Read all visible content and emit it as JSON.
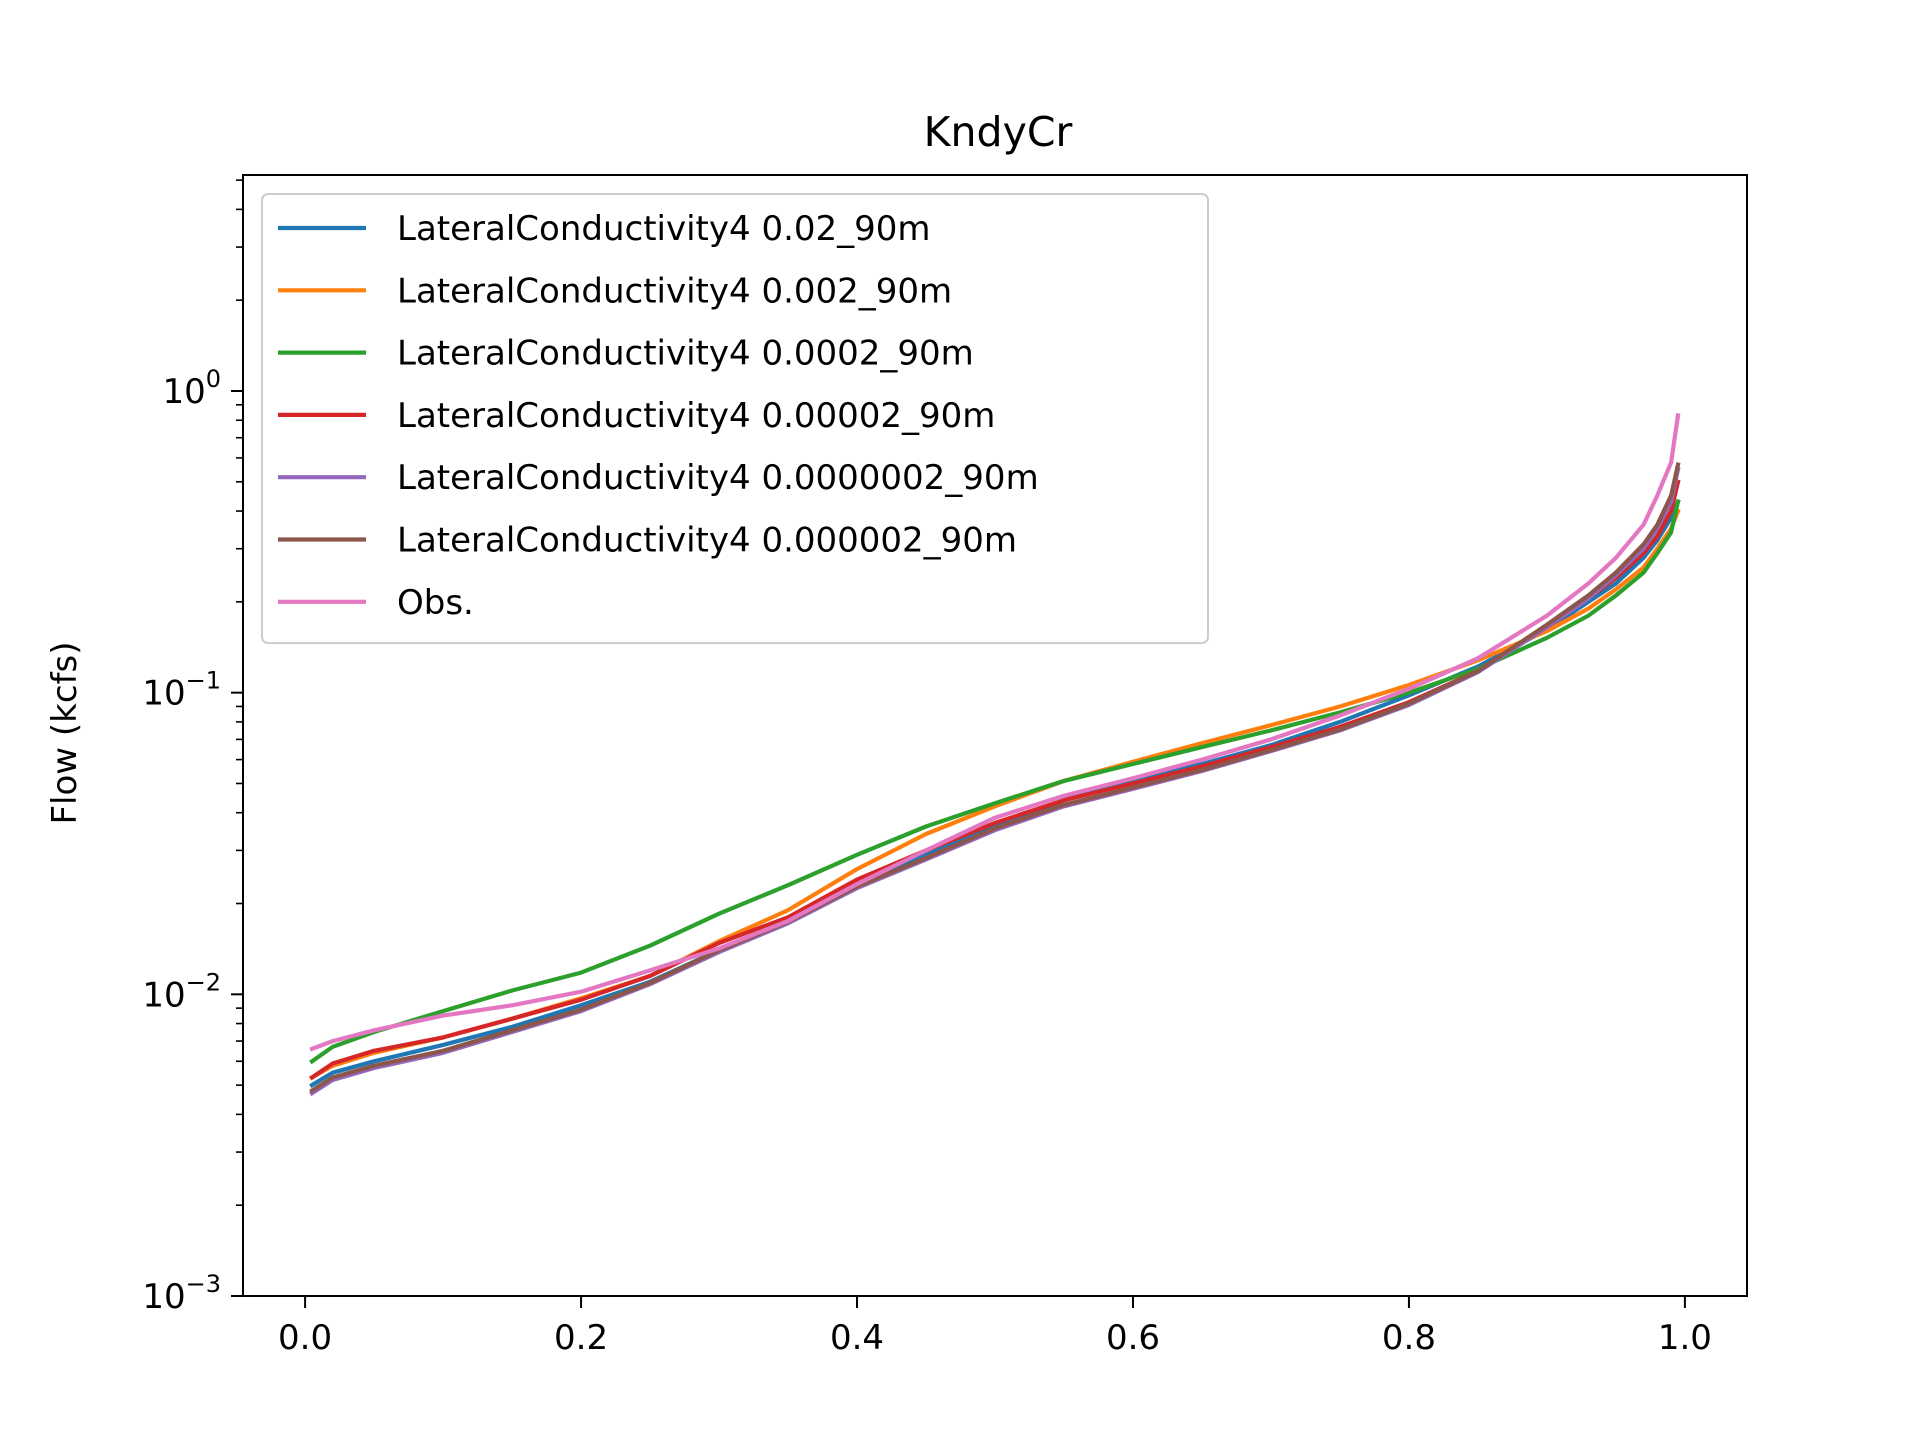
{
  "chart_data": {
    "type": "line",
    "title": "KndyCr",
    "xlabel": "",
    "ylabel": "Flow (kcfs)",
    "xlim": [
      -0.045,
      1.045
    ],
    "ylim": [
      0.001,
      5.2
    ],
    "yscale": "log",
    "grid": false,
    "legend_position": "upper-left",
    "xticks": [
      {
        "value": 0.0,
        "label": "0.0"
      },
      {
        "value": 0.2,
        "label": "0.2"
      },
      {
        "value": 0.4,
        "label": "0.4"
      },
      {
        "value": 0.6,
        "label": "0.6"
      },
      {
        "value": 0.8,
        "label": "0.8"
      },
      {
        "value": 1.0,
        "label": "1.0"
      }
    ],
    "yticks": [
      {
        "value": 0.001,
        "base": "10",
        "exp": "−3"
      },
      {
        "value": 0.01,
        "base": "10",
        "exp": "−2"
      },
      {
        "value": 0.1,
        "base": "10",
        "exp": "−1"
      },
      {
        "value": 1,
        "base": "10",
        "exp": "0"
      }
    ],
    "series": [
      {
        "name": "LateralConductivity4 0.02_90m",
        "color": "#1f77b4",
        "x": [
          0.005,
          0.02,
          0.05,
          0.1,
          0.15,
          0.2,
          0.25,
          0.3,
          0.35,
          0.4,
          0.45,
          0.5,
          0.55,
          0.6,
          0.65,
          0.7,
          0.75,
          0.8,
          0.85,
          0.9,
          0.93,
          0.95,
          0.97,
          0.98,
          0.99,
          0.995
        ],
        "y": [
          0.005,
          0.0055,
          0.006,
          0.0068,
          0.0078,
          0.0092,
          0.011,
          0.014,
          0.0175,
          0.023,
          0.029,
          0.036,
          0.044,
          0.051,
          0.058,
          0.067,
          0.08,
          0.098,
          0.122,
          0.162,
          0.2,
          0.23,
          0.28,
          0.32,
          0.38,
          0.43
        ]
      },
      {
        "name": "LateralConductivity4 0.002_90m",
        "color": "#ff7f0e",
        "x": [
          0.005,
          0.02,
          0.05,
          0.1,
          0.15,
          0.2,
          0.25,
          0.3,
          0.35,
          0.4,
          0.45,
          0.5,
          0.55,
          0.6,
          0.65,
          0.7,
          0.75,
          0.8,
          0.85,
          0.9,
          0.93,
          0.95,
          0.97,
          0.98,
          0.99,
          0.995
        ],
        "y": [
          0.0053,
          0.0058,
          0.0064,
          0.0072,
          0.0083,
          0.0097,
          0.0115,
          0.015,
          0.019,
          0.026,
          0.034,
          0.042,
          0.051,
          0.059,
          0.068,
          0.078,
          0.09,
          0.106,
          0.128,
          0.16,
          0.19,
          0.22,
          0.26,
          0.3,
          0.35,
          0.4
        ]
      },
      {
        "name": "LateralConductivity4 0.0002_90m",
        "color": "#2ca02c",
        "x": [
          0.005,
          0.02,
          0.05,
          0.1,
          0.15,
          0.2,
          0.25,
          0.3,
          0.35,
          0.4,
          0.45,
          0.5,
          0.55,
          0.6,
          0.65,
          0.7,
          0.75,
          0.8,
          0.85,
          0.9,
          0.93,
          0.95,
          0.97,
          0.98,
          0.99,
          0.995
        ],
        "y": [
          0.006,
          0.0067,
          0.0075,
          0.0088,
          0.0103,
          0.0118,
          0.0145,
          0.0185,
          0.023,
          0.029,
          0.036,
          0.043,
          0.051,
          0.058,
          0.066,
          0.075,
          0.086,
          0.1,
          0.12,
          0.152,
          0.18,
          0.21,
          0.25,
          0.29,
          0.34,
          0.43
        ]
      },
      {
        "name": "LateralConductivity4 0.00002_90m",
        "color": "#d62728",
        "x": [
          0.005,
          0.02,
          0.05,
          0.1,
          0.15,
          0.2,
          0.25,
          0.3,
          0.35,
          0.4,
          0.45,
          0.5,
          0.55,
          0.6,
          0.65,
          0.7,
          0.75,
          0.8,
          0.85,
          0.9,
          0.93,
          0.95,
          0.97,
          0.98,
          0.99,
          0.995
        ],
        "y": [
          0.0053,
          0.0059,
          0.0065,
          0.0072,
          0.0083,
          0.0096,
          0.0115,
          0.0148,
          0.018,
          0.024,
          0.03,
          0.037,
          0.044,
          0.05,
          0.057,
          0.066,
          0.077,
          0.093,
          0.118,
          0.165,
          0.205,
          0.24,
          0.29,
          0.33,
          0.4,
          0.5
        ]
      },
      {
        "name": "LateralConductivity4 0.0000002_90m",
        "color": "#9467bd",
        "x": [
          0.005,
          0.02,
          0.05,
          0.1,
          0.15,
          0.2,
          0.25,
          0.3,
          0.35,
          0.4,
          0.45,
          0.5,
          0.55,
          0.6,
          0.65,
          0.7,
          0.75,
          0.8,
          0.85,
          0.9,
          0.93,
          0.95,
          0.97,
          0.98,
          0.99,
          0.995
        ],
        "y": [
          0.0047,
          0.0052,
          0.0057,
          0.0064,
          0.0075,
          0.0088,
          0.0108,
          0.0138,
          0.0172,
          0.0225,
          0.028,
          0.035,
          0.042,
          0.048,
          0.055,
          0.064,
          0.075,
          0.091,
          0.117,
          0.165,
          0.205,
          0.245,
          0.3,
          0.35,
          0.43,
          0.55
        ]
      },
      {
        "name": "LateralConductivity4 0.000002_90m",
        "color": "#8c564b",
        "x": [
          0.005,
          0.02,
          0.05,
          0.1,
          0.15,
          0.2,
          0.25,
          0.3,
          0.35,
          0.4,
          0.45,
          0.5,
          0.55,
          0.6,
          0.65,
          0.7,
          0.75,
          0.8,
          0.85,
          0.9,
          0.93,
          0.95,
          0.97,
          0.98,
          0.99,
          0.995
        ],
        "y": [
          0.0048,
          0.0053,
          0.0058,
          0.0065,
          0.0076,
          0.0089,
          0.0109,
          0.014,
          0.0174,
          0.0228,
          0.0283,
          0.0355,
          0.0425,
          0.0485,
          0.0555,
          0.0645,
          0.0755,
          0.092,
          0.118,
          0.168,
          0.21,
          0.25,
          0.31,
          0.36,
          0.45,
          0.57
        ]
      },
      {
        "name": "Obs.",
        "color": "#e377c2",
        "x": [
          0.005,
          0.02,
          0.05,
          0.1,
          0.15,
          0.2,
          0.25,
          0.3,
          0.35,
          0.4,
          0.45,
          0.5,
          0.55,
          0.6,
          0.65,
          0.7,
          0.75,
          0.8,
          0.85,
          0.9,
          0.93,
          0.95,
          0.97,
          0.98,
          0.99,
          0.995
        ],
        "y": [
          0.0066,
          0.007,
          0.0076,
          0.0085,
          0.0092,
          0.0102,
          0.012,
          0.0142,
          0.0175,
          0.0232,
          0.03,
          0.0385,
          0.0455,
          0.052,
          0.06,
          0.07,
          0.084,
          0.103,
          0.13,
          0.18,
          0.23,
          0.28,
          0.36,
          0.45,
          0.58,
          0.83
        ]
      }
    ]
  }
}
